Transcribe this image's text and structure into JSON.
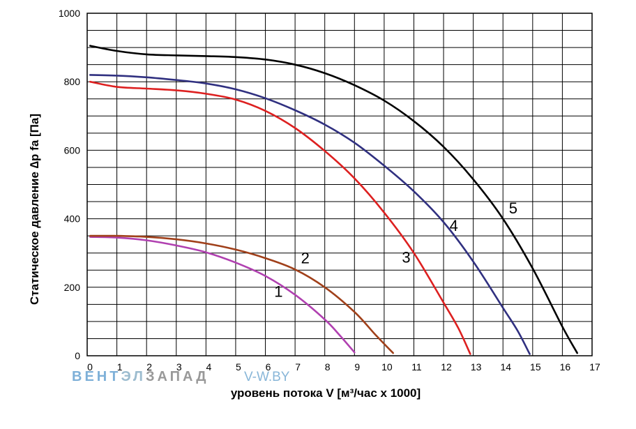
{
  "chart_data": {
    "type": "line",
    "title": "",
    "xlabel": "уровень потока  V [м³/час x 1000]",
    "ylabel": "Статическое давление  ∆p fa [Па]",
    "xlim": [
      0,
      17
    ],
    "ylim": [
      0,
      1000
    ],
    "x_ticks": [
      "0",
      "1",
      "2",
      "3",
      "4",
      "5",
      "6",
      "7",
      "8",
      "9",
      "10",
      "11",
      "12",
      "13",
      "14",
      "15",
      "16",
      "17"
    ],
    "y_ticks": [
      "0",
      "200",
      "400",
      "600",
      "800",
      "1000"
    ],
    "grid": true,
    "series": [
      {
        "name": "1",
        "color": "#b040b0",
        "label_pos": [
          6.3,
          172
        ],
        "points": [
          [
            0.1,
            347
          ],
          [
            1,
            345
          ],
          [
            2,
            337
          ],
          [
            3,
            322
          ],
          [
            4,
            302
          ],
          [
            5,
            272
          ],
          [
            6,
            233
          ],
          [
            7,
            178
          ],
          [
            8,
            106
          ],
          [
            8.5,
            60
          ],
          [
            9,
            10
          ]
        ]
      },
      {
        "name": "2",
        "color": "#a0401a",
        "label_pos": [
          7.2,
          270
        ],
        "points": [
          [
            0.1,
            350
          ],
          [
            1,
            350
          ],
          [
            2,
            347
          ],
          [
            3,
            340
          ],
          [
            4,
            328
          ],
          [
            5,
            310
          ],
          [
            6,
            285
          ],
          [
            7,
            252
          ],
          [
            8,
            200
          ],
          [
            9,
            128
          ],
          [
            9.7,
            62
          ],
          [
            10.3,
            8
          ]
        ]
      },
      {
        "name": "3",
        "color": "#dd2020",
        "label_pos": [
          10.6,
          272
        ],
        "points": [
          [
            0.1,
            800
          ],
          [
            1,
            785
          ],
          [
            2,
            780
          ],
          [
            3,
            775
          ],
          [
            4,
            765
          ],
          [
            5,
            748
          ],
          [
            6,
            715
          ],
          [
            7,
            665
          ],
          [
            8,
            598
          ],
          [
            9,
            518
          ],
          [
            10,
            418
          ],
          [
            11,
            300
          ],
          [
            12,
            155
          ],
          [
            12.5,
            80
          ],
          [
            12.9,
            5
          ]
        ]
      },
      {
        "name": "4",
        "color": "#303080",
        "label_pos": [
          12.2,
          365
        ],
        "points": [
          [
            0.1,
            820
          ],
          [
            1,
            818
          ],
          [
            2,
            813
          ],
          [
            3,
            805
          ],
          [
            4,
            795
          ],
          [
            5,
            778
          ],
          [
            6,
            752
          ],
          [
            7,
            717
          ],
          [
            8,
            675
          ],
          [
            9,
            622
          ],
          [
            10,
            555
          ],
          [
            11,
            480
          ],
          [
            12,
            390
          ],
          [
            13,
            275
          ],
          [
            14,
            140
          ],
          [
            14.5,
            72
          ],
          [
            14.9,
            5
          ]
        ]
      },
      {
        "name": "5",
        "color": "#000000",
        "label_pos": [
          14.2,
          415
        ],
        "points": [
          [
            0.1,
            905
          ],
          [
            1,
            890
          ],
          [
            2,
            880
          ],
          [
            3,
            877
          ],
          [
            4,
            875
          ],
          [
            5,
            872
          ],
          [
            6,
            865
          ],
          [
            7,
            850
          ],
          [
            8,
            825
          ],
          [
            9,
            790
          ],
          [
            10,
            745
          ],
          [
            11,
            685
          ],
          [
            12,
            610
          ],
          [
            13,
            515
          ],
          [
            14,
            400
          ],
          [
            15,
            255
          ],
          [
            16,
            85
          ],
          [
            16.5,
            8
          ]
        ]
      }
    ]
  },
  "watermark": {
    "brand_blue": "ВЕНТ",
    "brand_mid": "ЭЛ",
    "brand_dark": "ЗАПАД",
    "site": "V-W.BY",
    "colors": {
      "blue": "#7eb0d8",
      "mid": "#9cbccf",
      "dark": "#999999",
      "site": "#88b6d8"
    }
  }
}
